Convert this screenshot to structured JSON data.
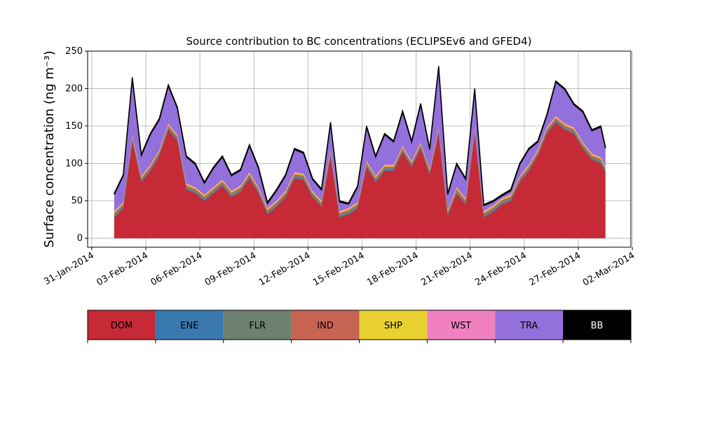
{
  "chart_data": {
    "type": "stacked_area",
    "title": "Source contribution to BC concentrations (ECLIPSEv6 and GFED4)",
    "y_label": "Surface concentration (ng m⁻³)",
    "x": [
      "2014-02-01T06:00",
      "2014-02-01T18:00",
      "2014-02-02T06:00",
      "2014-02-02T18:00",
      "2014-02-03T06:00",
      "2014-02-03T18:00",
      "2014-02-04T06:00",
      "2014-02-04T18:00",
      "2014-02-05T06:00",
      "2014-02-05T18:00",
      "2014-02-06T06:00",
      "2014-02-06T18:00",
      "2014-02-07T06:00",
      "2014-02-07T18:00",
      "2014-02-08T06:00",
      "2014-02-08T18:00",
      "2014-02-09T06:00",
      "2014-02-09T18:00",
      "2014-02-10T06:00",
      "2014-02-10T18:00",
      "2014-02-11T06:00",
      "2014-02-11T18:00",
      "2014-02-12T06:00",
      "2014-02-12T18:00",
      "2014-02-13T06:00",
      "2014-02-13T18:00",
      "2014-02-14T06:00",
      "2014-02-14T18:00",
      "2014-02-15T06:00",
      "2014-02-15T18:00",
      "2014-02-16T06:00",
      "2014-02-16T18:00",
      "2014-02-17T06:00",
      "2014-02-17T18:00",
      "2014-02-18T06:00",
      "2014-02-18T18:00",
      "2014-02-19T06:00",
      "2014-02-19T18:00",
      "2014-02-20T06:00",
      "2014-02-20T18:00",
      "2014-02-21T06:00",
      "2014-02-21T18:00",
      "2014-02-22T06:00",
      "2014-02-22T18:00",
      "2014-02-23T06:00",
      "2014-02-23T18:00",
      "2014-02-24T06:00",
      "2014-02-24T18:00",
      "2014-02-25T06:00",
      "2014-02-25T18:00",
      "2014-02-26T06:00",
      "2014-02-26T18:00",
      "2014-02-27T06:00",
      "2014-02-27T18:00",
      "2014-02-28T06:00",
      "2014-02-28T12:00"
    ],
    "series": [
      {
        "name": "DOM",
        "color": "#c62a36",
        "values": [
          28,
          40,
          130,
          75,
          90,
          110,
          145,
          130,
          65,
          60,
          50,
          60,
          70,
          55,
          62,
          80,
          60,
          32,
          42,
          55,
          80,
          78,
          55,
          42,
          110,
          28,
          32,
          40,
          95,
          75,
          90,
          90,
          115,
          95,
          120,
          85,
          140,
          30,
          60,
          45,
          140,
          28,
          35,
          45,
          50,
          75,
          90,
          110,
          140,
          155,
          145,
          140,
          120,
          105,
          100,
          88
        ]
      },
      {
        "name": "ENE",
        "color": "#3a78b0",
        "values": [
          1,
          1,
          1,
          1,
          1,
          1,
          1,
          1,
          1,
          1,
          1,
          1,
          1,
          1,
          1,
          1,
          1,
          1,
          1,
          1,
          1,
          1,
          1,
          1,
          1,
          1,
          1,
          1,
          1,
          1,
          1,
          1,
          1,
          1,
          1,
          1,
          1,
          1,
          1,
          1,
          1,
          1,
          1,
          1,
          1,
          1,
          1,
          1,
          1,
          1,
          1,
          1,
          1,
          1,
          1,
          1
        ]
      },
      {
        "name": "FLR",
        "color": "#6e8070",
        "values": [
          3,
          3,
          3,
          3,
          3,
          3,
          3,
          3,
          3,
          3,
          3,
          3,
          3,
          3,
          3,
          3,
          3,
          3,
          3,
          3,
          3,
          3,
          3,
          3,
          3,
          3,
          3,
          3,
          3,
          3,
          3,
          3,
          3,
          3,
          3,
          3,
          3,
          3,
          3,
          3,
          3,
          3,
          3,
          3,
          3,
          3,
          3,
          3,
          3,
          3,
          3,
          3,
          3,
          3,
          3,
          3
        ]
      },
      {
        "name": "IND",
        "color": "#c86454",
        "values": [
          2,
          2,
          2,
          2,
          2,
          2,
          2,
          2,
          2,
          2,
          2,
          2,
          2,
          2,
          2,
          2,
          2,
          2,
          2,
          2,
          2,
          2,
          2,
          2,
          2,
          2,
          2,
          2,
          2,
          2,
          2,
          2,
          2,
          2,
          2,
          2,
          2,
          2,
          2,
          2,
          2,
          2,
          2,
          2,
          2,
          2,
          2,
          2,
          2,
          2,
          2,
          2,
          2,
          2,
          2,
          2
        ]
      },
      {
        "name": "SHP",
        "color": "#e8d030",
        "values": [
          1.5,
          1.5,
          1.5,
          1.5,
          1.5,
          1.5,
          1.5,
          1.5,
          1.5,
          1.5,
          1.5,
          1.5,
          1.5,
          1.5,
          1.5,
          1.5,
          1.5,
          1.5,
          1.5,
          1.5,
          1.5,
          1.5,
          1.5,
          1.5,
          1.5,
          1.5,
          1.5,
          1.5,
          1.5,
          1.5,
          1.5,
          1.5,
          1.5,
          1.5,
          1.5,
          1.5,
          1.5,
          1.5,
          1.5,
          1.5,
          1.5,
          1.5,
          1.5,
          1.5,
          1.5,
          1.5,
          1.5,
          1.5,
          1.5,
          1.5,
          1.5,
          1.5,
          1.5,
          1.5,
          1.5,
          1.5
        ]
      },
      {
        "name": "WST",
        "color": "#f080c0",
        "values": [
          1,
          1,
          1,
          1,
          1,
          1,
          1,
          1,
          1,
          1,
          1,
          1,
          1,
          1,
          1,
          1,
          1,
          1,
          1,
          1,
          1,
          1,
          1,
          1,
          1,
          1,
          1,
          1,
          1,
          1,
          1,
          1,
          1,
          1,
          1,
          1,
          1,
          1,
          1,
          1,
          1,
          1,
          1,
          1,
          1,
          1,
          1,
          1,
          1,
          1,
          1,
          1,
          1,
          1,
          1,
          1
        ]
      },
      {
        "name": "TRA",
        "color": "#9370db",
        "values": [
          22,
          35,
          75,
          27,
          40,
          40,
          50,
          35,
          35,
          30,
          15,
          25,
          30,
          20,
          20,
          35,
          25,
          6,
          13,
          20,
          30,
          27,
          15,
          14,
          35,
          12,
          5,
          20,
          45,
          25,
          40,
          30,
          45,
          25,
          50,
          25,
          80,
          20,
          30,
          25,
          50,
          7,
          5,
          3,
          5,
          15,
          20,
          10,
          15,
          45,
          45,
          30,
          40,
          30,
          40,
          24
        ]
      },
      {
        "name": "BB",
        "color": "#000000",
        "values": [
          1.5,
          1.5,
          1.5,
          1.5,
          1.5,
          1.5,
          1.5,
          1.5,
          1.5,
          1.5,
          1.5,
          1.5,
          1.5,
          1.5,
          1.5,
          1.5,
          1.5,
          1.5,
          1.5,
          1.5,
          1.5,
          1.5,
          1.5,
          1.5,
          1.5,
          1.5,
          1.5,
          1.5,
          1.5,
          1.5,
          1.5,
          1.5,
          1.5,
          1.5,
          1.5,
          1.5,
          1.5,
          1.5,
          1.5,
          1.5,
          1.5,
          1.5,
          1.5,
          1.5,
          1.5,
          1.5,
          1.5,
          1.5,
          1.5,
          1.5,
          1.5,
          1.5,
          1.5,
          1.5,
          1.5,
          1.5
        ]
      }
    ],
    "xlim": [
      "2014-01-30T18:30",
      "2014-03-01T22:00"
    ],
    "xticks": [
      {
        "value": "2014-01-31",
        "label": "31-Jan-2014"
      },
      {
        "value": "2014-02-03",
        "label": "03-Feb-2014"
      },
      {
        "value": "2014-02-06",
        "label": "06-Feb-2014"
      },
      {
        "value": "2014-02-09",
        "label": "09-Feb-2014"
      },
      {
        "value": "2014-02-12",
        "label": "12-Feb-2014"
      },
      {
        "value": "2014-02-15",
        "label": "15-Feb-2014"
      },
      {
        "value": "2014-02-18",
        "label": "18-Feb-2014"
      },
      {
        "value": "2014-02-21",
        "label": "21-Feb-2014"
      },
      {
        "value": "2014-02-24",
        "label": "24-Feb-2014"
      },
      {
        "value": "2014-02-27",
        "label": "27-Feb-2014"
      },
      {
        "value": "2014-03-02",
        "label": "02-Mar-2014"
      }
    ],
    "ylim": [
      -12,
      250
    ],
    "yticks": [
      0,
      50,
      100,
      150,
      200,
      250
    ],
    "grid": true
  }
}
